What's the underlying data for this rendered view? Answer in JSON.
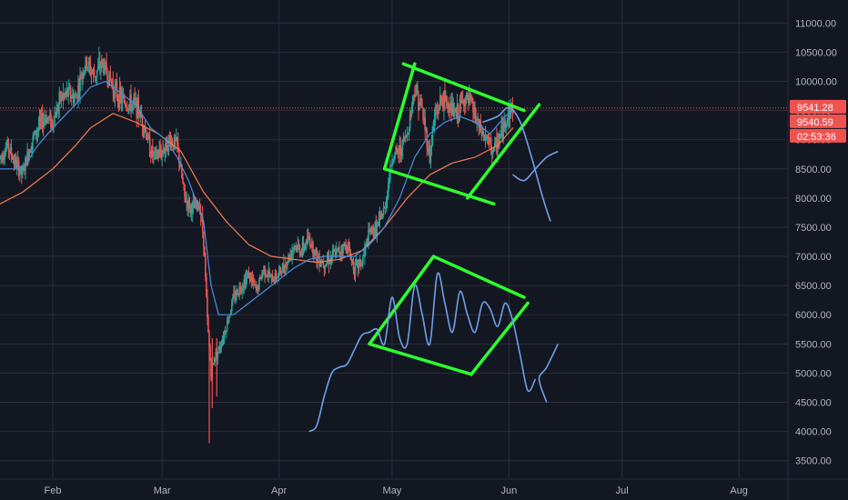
{
  "chart_data": {
    "type": "candlestick",
    "title": "",
    "xlabel": "",
    "ylabel": "",
    "ylim": [
      3200,
      11300
    ],
    "y_ticks": [
      3500,
      4000,
      4500,
      5000,
      5500,
      6000,
      6500,
      7000,
      7500,
      8000,
      8500,
      9000,
      9500,
      10000,
      10500,
      11000
    ],
    "y_tick_labels": [
      "3500.00",
      "4000.00",
      "4500.00",
      "5000.00",
      "5500.00",
      "6000.00",
      "6500.00",
      "7000.00",
      "7500.00",
      "8000.00",
      "8500.00",
      "9000.00",
      "9500.00",
      "10000.00",
      "10500.00",
      "11000.00"
    ],
    "x_ticks": [
      {
        "label": "Feb",
        "day": 0
      },
      {
        "label": "Mar",
        "day": 29
      },
      {
        "label": "Apr",
        "day": 60
      },
      {
        "label": "May",
        "day": 90
      },
      {
        "label": "Jun",
        "day": 121
      },
      {
        "label": "Jul",
        "day": 151
      },
      {
        "label": "Aug",
        "day": 182
      }
    ],
    "x_range_days": [
      -14,
      195
    ],
    "grid": true,
    "price_series": {
      "name": "",
      "close_path": [
        [
          -14,
          8700
        ],
        [
          -12,
          8900
        ],
        [
          -10,
          8600
        ],
        [
          -8,
          8400
        ],
        [
          -6,
          8900
        ],
        [
          -4,
          9200
        ],
        [
          -2,
          9400
        ],
        [
          0,
          9300
        ],
        [
          2,
          9700
        ],
        [
          4,
          9800
        ],
        [
          6,
          9700
        ],
        [
          8,
          10200
        ],
        [
          9,
          10300
        ],
        [
          11,
          10100
        ],
        [
          13,
          10300
        ],
        [
          14,
          10200
        ],
        [
          16,
          9900
        ],
        [
          18,
          9700
        ],
        [
          20,
          9600
        ],
        [
          22,
          9600
        ],
        [
          24,
          9300
        ],
        [
          26,
          8800
        ],
        [
          27,
          8700
        ],
        [
          29,
          8800
        ],
        [
          31,
          9000
        ],
        [
          33,
          8900
        ],
        [
          35,
          8000
        ],
        [
          37,
          7800
        ],
        [
          39,
          7900
        ],
        [
          40,
          7300
        ],
        [
          41,
          5900
        ],
        [
          42,
          5000
        ],
        [
          43,
          5300
        ],
        [
          44,
          5400
        ],
        [
          46,
          5800
        ],
        [
          48,
          6300
        ],
        [
          50,
          6500
        ],
        [
          52,
          6700
        ],
        [
          54,
          6400
        ],
        [
          56,
          6800
        ],
        [
          58,
          6600
        ],
        [
          60,
          6700
        ],
        [
          62,
          6900
        ],
        [
          64,
          7200
        ],
        [
          66,
          7100
        ],
        [
          68,
          7300
        ],
        [
          70,
          7000
        ],
        [
          72,
          6900
        ],
        [
          74,
          7000
        ],
        [
          76,
          7100
        ],
        [
          78,
          7200
        ],
        [
          80,
          6800
        ],
        [
          82,
          6900
        ],
        [
          84,
          7400
        ],
        [
          86,
          7500
        ],
        [
          88,
          7800
        ],
        [
          90,
          8700
        ],
        [
          92,
          8800
        ],
        [
          94,
          9100
        ],
        [
          96,
          9900
        ],
        [
          98,
          9500
        ],
        [
          100,
          8700
        ],
        [
          101,
          9300
        ],
        [
          103,
          9700
        ],
        [
          105,
          9600
        ],
        [
          107,
          9400
        ],
        [
          109,
          9700
        ],
        [
          111,
          9600
        ],
        [
          113,
          9200
        ],
        [
          115,
          9000
        ],
        [
          117,
          8800
        ],
        [
          119,
          9100
        ],
        [
          121,
          9500
        ],
        [
          122,
          9541.28
        ]
      ],
      "ma_fast_path": [
        [
          -14,
          8500
        ],
        [
          -8,
          8500
        ],
        [
          -4,
          8900
        ],
        [
          0,
          9200
        ],
        [
          6,
          9600
        ],
        [
          10,
          9900
        ],
        [
          14,
          10000
        ],
        [
          18,
          9800
        ],
        [
          22,
          9600
        ],
        [
          26,
          9200
        ],
        [
          30,
          9000
        ],
        [
          33,
          8700
        ],
        [
          36,
          8300
        ],
        [
          40,
          7600
        ],
        [
          42,
          6500
        ],
        [
          44,
          6000
        ],
        [
          48,
          6000
        ],
        [
          52,
          6200
        ],
        [
          56,
          6400
        ],
        [
          60,
          6600
        ],
        [
          64,
          6800
        ],
        [
          68,
          6950
        ],
        [
          72,
          7000
        ],
        [
          76,
          7000
        ],
        [
          80,
          7000
        ],
        [
          84,
          7200
        ],
        [
          88,
          7500
        ],
        [
          92,
          8000
        ],
        [
          96,
          8700
        ],
        [
          100,
          9100
        ],
        [
          104,
          9300
        ],
        [
          108,
          9400
        ],
        [
          112,
          9300
        ],
        [
          116,
          9100
        ],
        [
          120,
          9400
        ],
        [
          122,
          9500
        ]
      ],
      "ma_slow_path": [
        [
          -14,
          7900
        ],
        [
          -8,
          8100
        ],
        [
          -4,
          8300
        ],
        [
          0,
          8500
        ],
        [
          6,
          8900
        ],
        [
          10,
          9200
        ],
        [
          16,
          9450
        ],
        [
          22,
          9300
        ],
        [
          28,
          9100
        ],
        [
          34,
          8800
        ],
        [
          40,
          8100
        ],
        [
          46,
          7600
        ],
        [
          52,
          7200
        ],
        [
          58,
          7000
        ],
        [
          64,
          6950
        ],
        [
          70,
          6900
        ],
        [
          76,
          6950
        ],
        [
          82,
          7100
        ],
        [
          88,
          7500
        ],
        [
          94,
          8000
        ],
        [
          100,
          8400
        ],
        [
          106,
          8600
        ],
        [
          112,
          8700
        ],
        [
          118,
          8900
        ],
        [
          122,
          9200
        ]
      ]
    },
    "drawings": {
      "upper_channel": [
        {
          "from": [
            93,
            10300
          ],
          "to": [
            125,
            9500
          ]
        },
        {
          "from": [
            88,
            8500
          ],
          "to": [
            117,
            7900
          ]
        },
        {
          "from": [
            88,
            8500
          ],
          "to": [
            96,
            10300
          ]
        },
        {
          "from": [
            110,
            8000
          ],
          "to": [
            129,
            9600
          ]
        }
      ],
      "lower_diamond": [
        {
          "from": [
            84,
            5500
          ],
          "to": [
            101,
            7000
          ]
        },
        {
          "from": [
            101,
            7000
          ],
          "to": [
            125,
            6300
          ]
        },
        {
          "from": [
            84,
            5500
          ],
          "to": [
            111,
            4980
          ]
        },
        {
          "from": [
            111,
            4980
          ],
          "to": [
            126,
            6200
          ]
        }
      ],
      "upper_projection": [
        [
          114,
          9300
        ],
        [
          118,
          9400
        ],
        [
          121,
          9550
        ],
        [
          124,
          9300
        ],
        [
          127,
          8700
        ],
        [
          130,
          8000
        ],
        [
          132,
          7600
        ],
        [
          122,
          8400
        ],
        [
          125,
          8300
        ],
        [
          128,
          8500
        ],
        [
          131,
          8700
        ],
        [
          134,
          8800
        ]
      ],
      "lower_projection": [
        [
          68,
          4000
        ],
        [
          70,
          4100
        ],
        [
          72,
          4600
        ],
        [
          74,
          5000
        ],
        [
          76,
          5100
        ],
        [
          78,
          5150
        ],
        [
          80,
          5400
        ],
        [
          82,
          5650
        ],
        [
          84,
          5700
        ],
        [
          86,
          5750
        ],
        [
          88,
          5500
        ],
        [
          90,
          6300
        ],
        [
          92,
          5600
        ],
        [
          94,
          5500
        ],
        [
          96,
          6500
        ],
        [
          98,
          6000
        ],
        [
          100,
          5500
        ],
        [
          102,
          6700
        ],
        [
          104,
          6200
        ],
        [
          106,
          5700
        ],
        [
          108,
          6400
        ],
        [
          110,
          6000
        ],
        [
          112,
          5700
        ],
        [
          114,
          6200
        ],
        [
          116,
          6100
        ],
        [
          118,
          5800
        ],
        [
          120,
          6200
        ],
        [
          122,
          5900
        ],
        [
          124,
          5300
        ],
        [
          126,
          4700
        ],
        [
          128,
          4900
        ],
        [
          131,
          4500
        ],
        [
          129,
          4900
        ],
        [
          131,
          5100
        ],
        [
          134,
          5500
        ]
      ]
    },
    "price_line": {
      "value": 9541.28
    },
    "badges": [
      {
        "text": "9541.28",
        "value": 9541.28,
        "color": "#ef5350"
      },
      {
        "text": "9540.59",
        "value": 9540.59,
        "color": "#ef5350"
      },
      {
        "text": "02:53:36",
        "value": 9540.0,
        "color": "#ef5350"
      }
    ],
    "colors": {
      "background": "#131722",
      "grid": "#2a2e39",
      "up": "#26a69a",
      "down": "#ef5350",
      "ma_fast": "#4a90e2",
      "ma_slow": "#f57c50",
      "drawing_green": "#2efc2e",
      "projection": "#6fa0e8"
    }
  }
}
